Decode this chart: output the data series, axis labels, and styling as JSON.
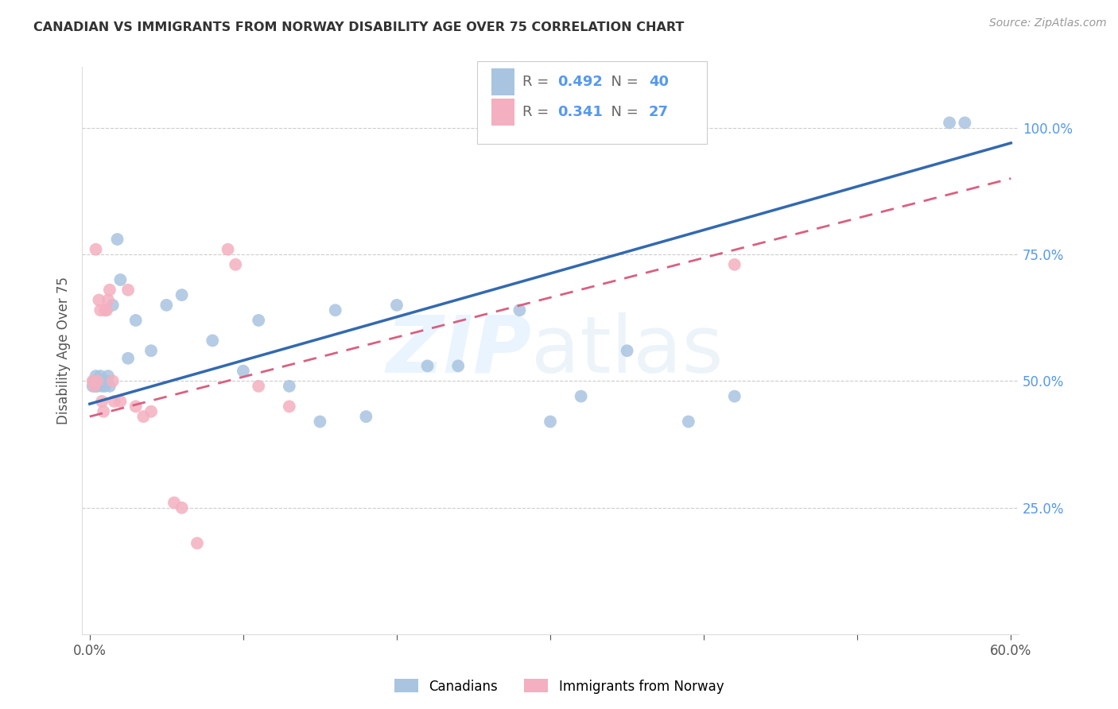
{
  "title": "CANADIAN VS IMMIGRANTS FROM NORWAY DISABILITY AGE OVER 75 CORRELATION CHART",
  "source": "Source: ZipAtlas.com",
  "ylabel": "Disability Age Over 75",
  "canadian_R": 0.492,
  "canadian_N": 40,
  "norway_R": 0.341,
  "norway_N": 27,
  "canadian_color": "#a8c4e0",
  "canadian_line_color": "#3369b0",
  "norway_color": "#f4b0c0",
  "norway_line_color": "#d96080",
  "xlim": [
    -0.005,
    0.605
  ],
  "ylim": [
    0.0,
    1.12
  ],
  "canadians_x": [
    0.002,
    0.003,
    0.004,
    0.004,
    0.005,
    0.005,
    0.006,
    0.007,
    0.008,
    0.009,
    0.01,
    0.011,
    0.012,
    0.013,
    0.015,
    0.018,
    0.02,
    0.025,
    0.03,
    0.04,
    0.05,
    0.06,
    0.08,
    0.1,
    0.11,
    0.13,
    0.15,
    0.16,
    0.18,
    0.2,
    0.22,
    0.24,
    0.28,
    0.3,
    0.32,
    0.35,
    0.39,
    0.42,
    0.56,
    0.57
  ],
  "canadians_y": [
    0.49,
    0.5,
    0.51,
    0.49,
    0.5,
    0.49,
    0.5,
    0.51,
    0.49,
    0.5,
    0.49,
    0.5,
    0.51,
    0.49,
    0.65,
    0.78,
    0.7,
    0.545,
    0.62,
    0.56,
    0.65,
    0.67,
    0.58,
    0.52,
    0.62,
    0.49,
    0.42,
    0.64,
    0.43,
    0.65,
    0.53,
    0.53,
    0.64,
    0.42,
    0.47,
    0.56,
    0.42,
    0.47,
    1.01,
    1.01
  ],
  "norway_x": [
    0.002,
    0.003,
    0.004,
    0.005,
    0.006,
    0.007,
    0.008,
    0.009,
    0.01,
    0.011,
    0.012,
    0.013,
    0.015,
    0.016,
    0.02,
    0.025,
    0.03,
    0.035,
    0.04,
    0.055,
    0.06,
    0.07,
    0.09,
    0.095,
    0.11,
    0.13,
    0.42
  ],
  "norway_y": [
    0.5,
    0.49,
    0.76,
    0.5,
    0.66,
    0.64,
    0.46,
    0.44,
    0.64,
    0.64,
    0.66,
    0.68,
    0.5,
    0.46,
    0.46,
    0.68,
    0.45,
    0.43,
    0.44,
    0.26,
    0.25,
    0.18,
    0.76,
    0.73,
    0.49,
    0.45,
    0.73
  ],
  "can_line_x0": 0.0,
  "can_line_y0": 0.455,
  "can_line_x1": 0.6,
  "can_line_y1": 0.97,
  "nor_line_x0": 0.0,
  "nor_line_y0": 0.43,
  "nor_line_x1": 0.6,
  "nor_line_y1": 0.9
}
